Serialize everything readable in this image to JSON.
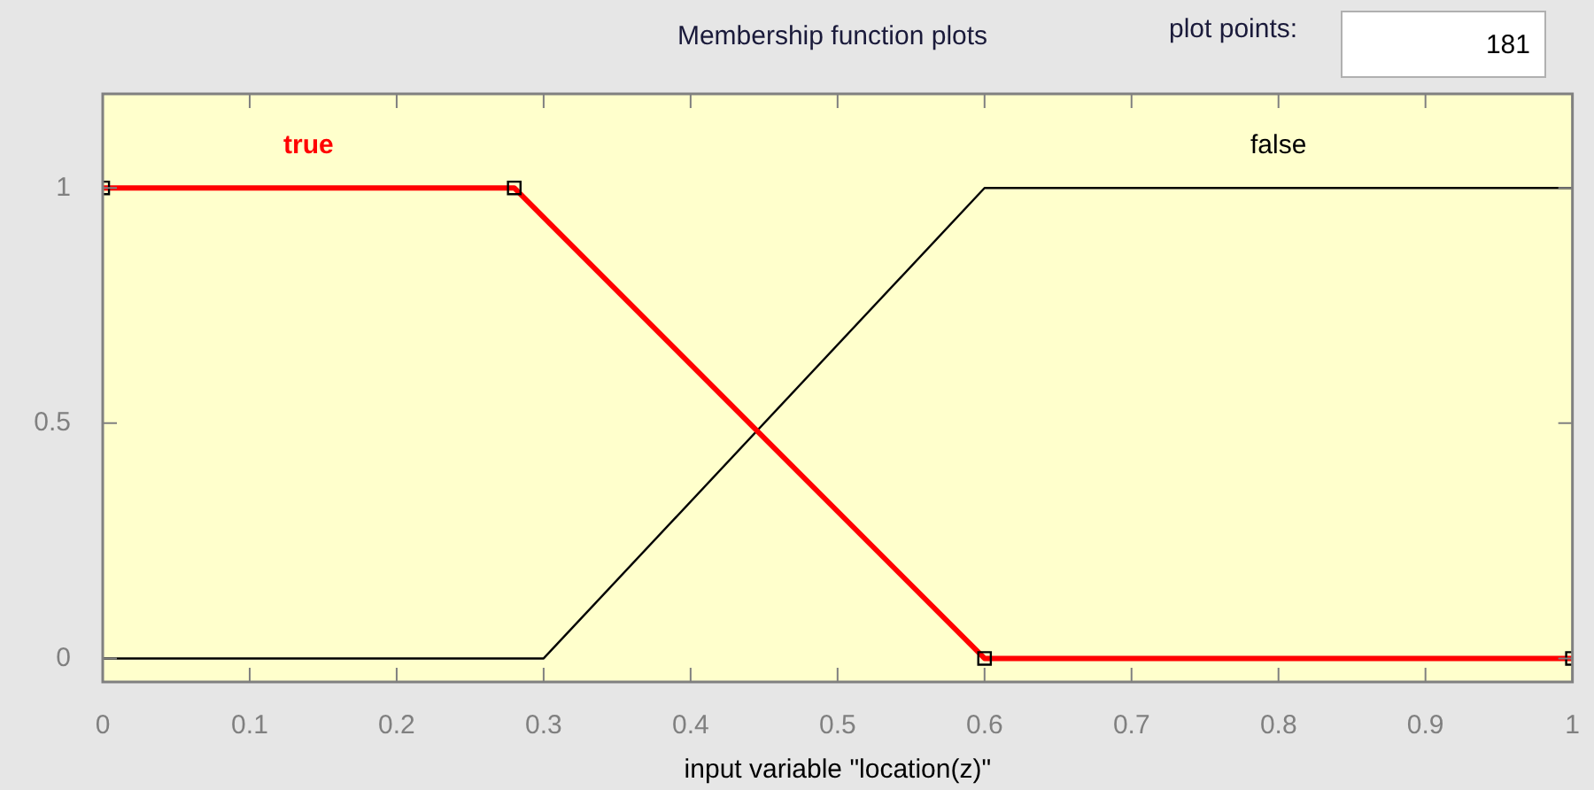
{
  "chart_data": {
    "type": "line",
    "title": "Membership function plots",
    "xlabel": "input variable \"location(z)\"",
    "annotations": [
      "plot points:",
      "181"
    ],
    "xlim": [
      0,
      1
    ],
    "xticks": [
      0,
      0.1,
      0.2,
      0.3,
      0.4,
      0.5,
      0.6,
      0.7,
      0.8,
      0.9,
      1
    ],
    "ylim": [
      -0.05,
      1.2
    ],
    "yticks": [
      0,
      0.5,
      1
    ],
    "grid": false,
    "legend": false,
    "series": [
      {
        "name": "true",
        "color": "#ff0000",
        "x": [
          0,
          0.28,
          0.6,
          1
        ],
        "values": [
          1,
          1,
          0,
          0
        ],
        "marker": "square"
      },
      {
        "name": "false",
        "color": "#000000",
        "x": [
          0,
          0.3,
          0.6,
          1
        ],
        "values": [
          0,
          0,
          1,
          1
        ],
        "marker": "none"
      }
    ]
  }
}
